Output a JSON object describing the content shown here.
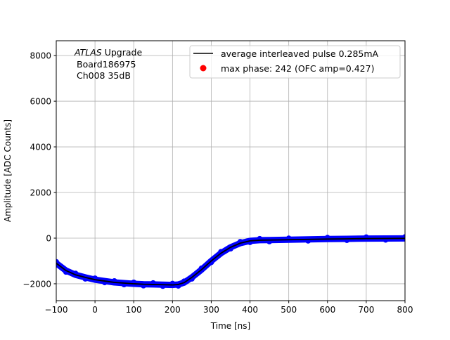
{
  "chart_data": {
    "type": "line",
    "title": "",
    "xlabel": "Time [ns]",
    "ylabel": "Amplitude [ADC Counts]",
    "xlim": [
      -100,
      800
    ],
    "ylim": [
      -2740,
      8650
    ],
    "grid": true,
    "xticks": [
      -100,
      0,
      100,
      200,
      300,
      400,
      500,
      600,
      700,
      800
    ],
    "yticks": [
      -2000,
      0,
      2000,
      4000,
      6000,
      8000
    ],
    "xtick_labels": [
      "−100",
      "0",
      "100",
      "200",
      "300",
      "400",
      "500",
      "600",
      "700",
      "800"
    ],
    "ytick_labels": [
      "−2000",
      "0",
      "2000",
      "4000",
      "6000",
      "8000"
    ],
    "annotation": {
      "atlas": "ATLAS",
      "upgrade": "Upgrade",
      "board": "Board186975",
      "channel": "Ch008 35dB"
    },
    "legend": {
      "placement": "top-right",
      "entries": [
        {
          "label": "average interleaved pulse 0.285mA",
          "marker": "line",
          "color": "#000000"
        },
        {
          "label": "max phase: 242 (OFC amp=0.427)",
          "marker": "dot",
          "color": "#ff0000"
        }
      ]
    },
    "x": [
      -100,
      -75,
      -50,
      -25,
      0,
      25,
      50,
      75,
      100,
      125,
      150,
      175,
      200,
      215,
      230,
      250,
      275,
      300,
      325,
      350,
      375,
      400,
      425,
      450,
      500,
      550,
      600,
      650,
      700,
      750,
      800
    ],
    "series": [
      {
        "role": "samples",
        "color": "#0000ff",
        "values": [
          -1100,
          -1420,
          -1610,
          -1720,
          -1820,
          -1880,
          -1940,
          -1970,
          -2000,
          -2020,
          -2030,
          -2040,
          -2050,
          -2030,
          -1950,
          -1720,
          -1380,
          -1000,
          -660,
          -400,
          -220,
          -120,
          -90,
          -85,
          -70,
          -55,
          -40,
          -30,
          -20,
          -15,
          -10
        ]
      },
      {
        "role": "average",
        "color": "#000000",
        "values": [
          -1100,
          -1420,
          -1610,
          -1720,
          -1820,
          -1880,
          -1940,
          -1970,
          -2000,
          -2020,
          -2030,
          -2040,
          -2050,
          -2030,
          -1950,
          -1720,
          -1380,
          -1000,
          -660,
          -400,
          -220,
          -120,
          -90,
          -85,
          -70,
          -55,
          -40,
          -30,
          -20,
          -15,
          -10
        ]
      }
    ]
  }
}
